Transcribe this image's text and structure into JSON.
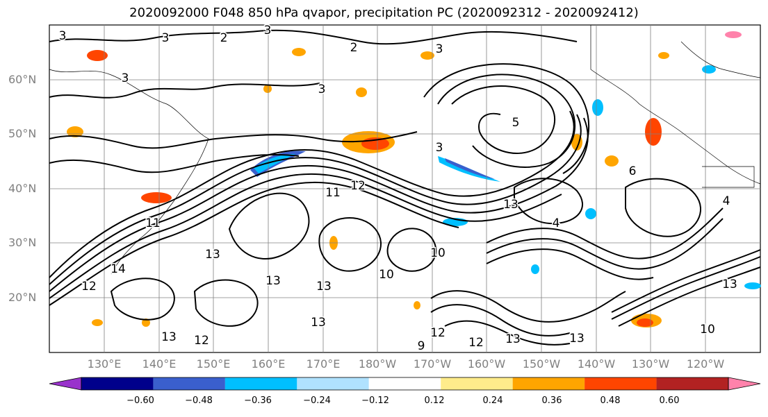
{
  "title": "2020092000 F048 850 hPa qvapor, precipitation PC (2020092312 - 2020092412)",
  "map": {
    "lat_labels": [
      "60°N",
      "50°N",
      "40°N",
      "30°N",
      "20°N"
    ],
    "lon_labels": [
      "130°E",
      "140°E",
      "150°E",
      "160°E",
      "170°E",
      "180°W",
      "170°W",
      "160°W",
      "150°W",
      "140°W",
      "130°W",
      "120°W"
    ],
    "contour_labels": [
      "3",
      "3",
      "3",
      "2",
      "2",
      "3",
      "3",
      "3",
      "5",
      "3",
      "11",
      "11",
      "12",
      "13",
      "13",
      "13",
      "14",
      "12",
      "13",
      "10",
      "10",
      "12",
      "13",
      "12",
      "13",
      "9",
      "12",
      "13",
      "13",
      "10",
      "13",
      "6",
      "4",
      "4"
    ]
  },
  "colorbar": {
    "colors": [
      "#9932cc",
      "#00008b",
      "#3a5fcd",
      "#00bfff",
      "#b0e2ff",
      "#ffffff",
      "#ffec8b",
      "#ffa500",
      "#ff4500",
      "#b22222",
      "#ff82ab"
    ],
    "tick_labels": [
      "−0.60",
      "−0.48",
      "−0.36",
      "−0.24",
      "−0.12",
      "0.12",
      "0.24",
      "0.36",
      "0.48",
      "0.60"
    ]
  },
  "colors": {
    "grid": "#808080",
    "contour": "#000000",
    "axis_label": "#808080"
  }
}
